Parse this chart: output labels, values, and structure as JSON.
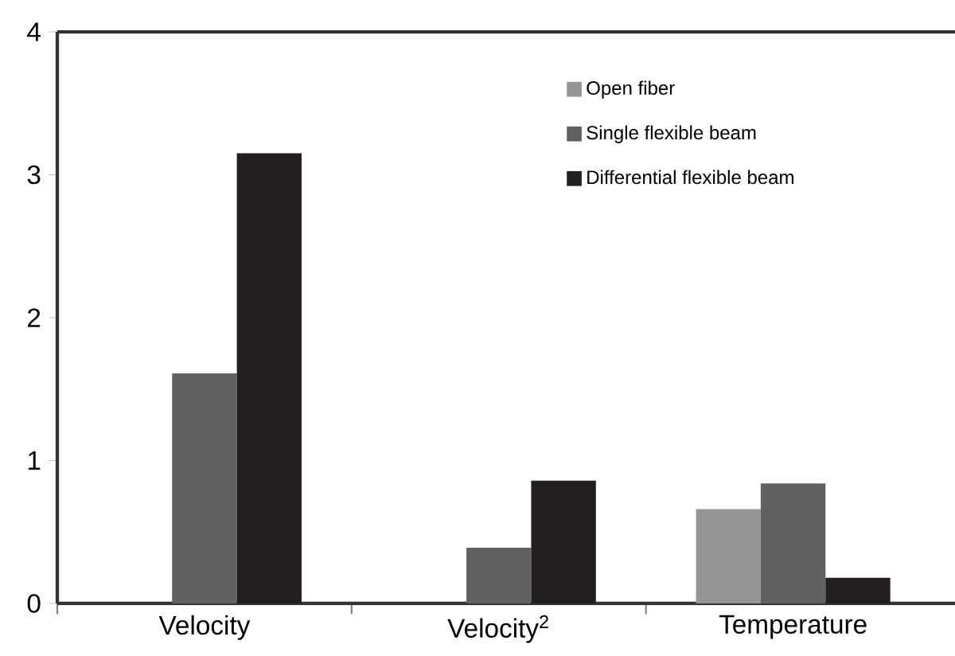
{
  "chart_data": {
    "type": "bar",
    "categories": [
      "Velocity",
      "Velocity$^{2}$",
      "Temperature"
    ],
    "series": [
      {
        "name": "Open fiber",
        "color": "#959595",
        "values": [
          0,
          0,
          0.66
        ]
      },
      {
        "name": "Single flexible beam",
        "color": "#616161",
        "values": [
          1.61,
          0.39,
          0.84
        ]
      },
      {
        "name": "Differential flexible beam",
        "color": "#231f20",
        "values": [
          3.15,
          0.86,
          0.18
        ]
      }
    ],
    "ylim": [
      0,
      4
    ],
    "yticks": [
      0,
      1,
      2,
      3,
      4
    ],
    "grid": false,
    "legend": "top right"
  }
}
